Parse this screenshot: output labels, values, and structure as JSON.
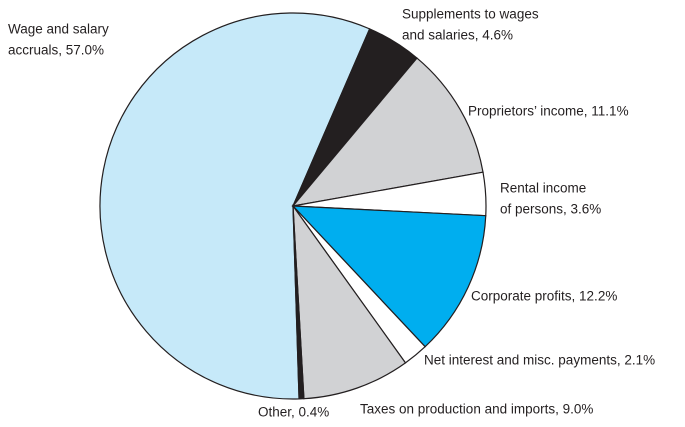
{
  "chart_data": {
    "type": "pie",
    "values": [
      57.0,
      4.6,
      11.1,
      3.6,
      12.2,
      2.1,
      9.0,
      0.4
    ],
    "value_labels": [
      [
        "Wage and salary",
        "accruals, 57.0%"
      ],
      [
        "Supplements to wages",
        "and salaries, 4.6%"
      ],
      [
        "Proprietors’ income, 11.1%"
      ],
      [
        "Rental income",
        "of persons, 3.6%"
      ],
      [
        "Corporate profits, 12.2%"
      ],
      [
        "Net interest and misc. payments, 2.1%"
      ],
      [
        "Taxes on production and imports, 9.0%"
      ],
      [
        "Other, 0.4%"
      ]
    ],
    "colors": [
      "#c6e9f9",
      "#231f20",
      "#d1d2d4",
      "#ffffff",
      "#00aeef",
      "#ffffff",
      "#d1d2d4",
      "#231f20"
    ]
  }
}
